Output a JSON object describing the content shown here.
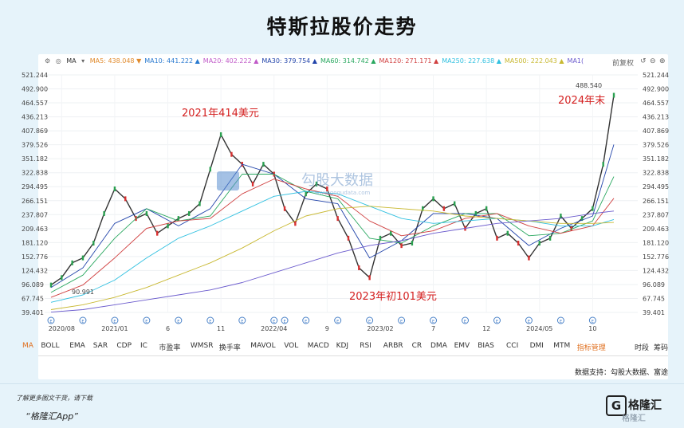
{
  "title": "特斯拉股价走势",
  "legend": {
    "indicator": "MA",
    "items": [
      {
        "label": "MA5:",
        "value": "438.048",
        "color": "#e08a2c",
        "arrow": "▼"
      },
      {
        "label": "MA10:",
        "value": "441.222",
        "color": "#2a7ad0",
        "arrow": "▲"
      },
      {
        "label": "MA20:",
        "value": "402.222",
        "color": "#c05ac8",
        "arrow": "▲"
      },
      {
        "label": "MA30:",
        "value": "379.754",
        "color": "#2244aa",
        "arrow": "▲"
      },
      {
        "label": "MA60:",
        "value": "314.742",
        "color": "#2aa860",
        "arrow": "▲"
      },
      {
        "label": "MA120:",
        "value": "271.171",
        "color": "#d04040",
        "arrow": "▲"
      },
      {
        "label": "MA250:",
        "value": "227.638",
        "color": "#30c0e0",
        "arrow": "▲"
      },
      {
        "label": "MA500:",
        "value": "222.043",
        "color": "#c8b830",
        "arrow": "▲"
      },
      {
        "label": "MA1(",
        "value": "",
        "color": "#6a5acd",
        "arrow": ""
      }
    ],
    "adjust": "前复权"
  },
  "annotations": {
    "peak2021": "2021年414美元",
    "low2023": "2023年初101美元",
    "end2024": "2024年末",
    "max_label": "488.540",
    "min_label": "90.991"
  },
  "watermark": {
    "name": "勾股大数据",
    "url": "www.gogudata.com"
  },
  "indicator_tabs": [
    "MA",
    "BOLL",
    "EMA",
    "SAR",
    "CDP",
    "IC",
    "市盈率",
    "WMSR",
    "换手率",
    "MAVOL",
    "VOL",
    "MACD",
    "KDJ",
    "RSI",
    "ARBR",
    "CR",
    "DMA",
    "EMV",
    "BIAS",
    "CCI",
    "DMI",
    "MTM",
    "指标管理",
    "时段",
    "筹码"
  ],
  "source": "数据支持：勾股大数据、富途",
  "footer": {
    "promo": "了解更多图文干货，请下载",
    "app": "“格隆汇App”",
    "brand_icon": "G",
    "brand_name": "格隆汇",
    "brand_watermark": "格隆汇"
  },
  "event_marker": "E",
  "chart_data": {
    "type": "line",
    "title": "特斯拉股价走势",
    "x_ticks": [
      "2020/08",
      "2021/01",
      "6",
      "11",
      "2022/04",
      "9",
      "2023/02",
      "7",
      "12",
      "2024/05",
      "10"
    ],
    "y_ticks": [
      39.401,
      67.745,
      96.089,
      124.432,
      152.776,
      181.12,
      209.463,
      237.807,
      266.151,
      294.495,
      322.838,
      351.182,
      379.526,
      407.869,
      436.213,
      464.557,
      492.9,
      521.244
    ],
    "ylim": [
      39.401,
      521.244
    ],
    "grid": true,
    "series": [
      {
        "name": "",
        "color": "#333333",
        "x": [
          "2020/07",
          "2020/08",
          "2020/09",
          "2020/10",
          "2020/11",
          "2020/12",
          "2021/01",
          "2021/02",
          "2021/03",
          "2021/04",
          "2021/05",
          "2021/06",
          "2021/07",
          "2021/08",
          "2021/09",
          "2021/10",
          "2021/11",
          "2021/12",
          "2022/01",
          "2022/02",
          "2022/03",
          "2022/04",
          "2022/05",
          "2022/06",
          "2022/07",
          "2022/08",
          "2022/09",
          "2022/10",
          "2022/11",
          "2022/12",
          "2023/01",
          "2023/02",
          "2023/03",
          "2023/04",
          "2023/05",
          "2023/06",
          "2023/07",
          "2023/08",
          "2023/09",
          "2023/10",
          "2023/11",
          "2023/12",
          "2024/01",
          "2024/02",
          "2024/03",
          "2024/04",
          "2024/05",
          "2024/06",
          "2024/07",
          "2024/08",
          "2024/09",
          "2024/10",
          "2024/11",
          "2024/12"
        ],
        "values": [
          95,
          110,
          140,
          150,
          180,
          240,
          290,
          270,
          230,
          240,
          200,
          215,
          230,
          240,
          260,
          330,
          400,
          360,
          340,
          300,
          340,
          320,
          250,
          220,
          280,
          300,
          290,
          230,
          190,
          130,
          110,
          190,
          200,
          175,
          180,
          250,
          270,
          250,
          260,
          210,
          240,
          250,
          190,
          200,
          180,
          150,
          180,
          190,
          235,
          210,
          230,
          250,
          340,
          480
        ]
      },
      {
        "name": "MA30",
        "color": "#2244aa",
        "x": [
          "2020/07",
          "2020/10",
          "2021/01",
          "2021/04",
          "2021/07",
          "2021/10",
          "2022/01",
          "2022/04",
          "2022/07",
          "2022/10",
          "2023/01",
          "2023/04",
          "2023/07",
          "2023/10",
          "2024/01",
          "2024/04",
          "2024/07",
          "2024/10",
          "2024/12"
        ],
        "values": [
          90,
          130,
          220,
          250,
          215,
          250,
          340,
          320,
          270,
          260,
          150,
          185,
          240,
          240,
          230,
          175,
          210,
          235,
          380
        ]
      },
      {
        "name": "MA60",
        "color": "#2aa860",
        "x": [
          "2020/07",
          "2020/10",
          "2021/01",
          "2021/04",
          "2021/07",
          "2021/10",
          "2022/01",
          "2022/04",
          "2022/07",
          "2022/10",
          "2023/01",
          "2023/04",
          "2023/07",
          "2023/10",
          "2024/01",
          "2024/04",
          "2024/07",
          "2024/10",
          "2024/12"
        ],
        "values": [
          80,
          115,
          190,
          250,
          225,
          235,
          320,
          320,
          285,
          270,
          190,
          180,
          215,
          240,
          240,
          195,
          200,
          225,
          315
        ]
      },
      {
        "name": "MA120",
        "color": "#d04040",
        "x": [
          "2020/07",
          "2020/10",
          "2021/01",
          "2021/04",
          "2021/07",
          "2021/10",
          "2022/01",
          "2022/04",
          "2022/07",
          "2022/10",
          "2023/01",
          "2023/04",
          "2023/07",
          "2023/10",
          "2024/01",
          "2024/04",
          "2024/07",
          "2024/10",
          "2024/12"
        ],
        "values": [
          70,
          95,
          150,
          210,
          225,
          230,
          280,
          310,
          290,
          275,
          225,
          195,
          205,
          230,
          240,
          215,
          200,
          215,
          271
        ]
      },
      {
        "name": "MA250",
        "color": "#30c0e0",
        "x": [
          "2020/07",
          "2020/10",
          "2021/01",
          "2021/04",
          "2021/07",
          "2021/10",
          "2022/01",
          "2022/04",
          "2022/07",
          "2022/10",
          "2023/01",
          "2023/04",
          "2023/07",
          "2023/10",
          "2024/01",
          "2024/04",
          "2024/07",
          "2024/10",
          "2024/12"
        ],
        "values": [
          60,
          75,
          105,
          150,
          190,
          215,
          245,
          275,
          285,
          280,
          255,
          230,
          220,
          225,
          230,
          225,
          215,
          215,
          228
        ]
      },
      {
        "name": "MA500",
        "color": "#c8b830",
        "x": [
          "2020/07",
          "2020/10",
          "2021/01",
          "2021/04",
          "2021/07",
          "2021/10",
          "2022/01",
          "2022/04",
          "2022/07",
          "2022/10",
          "2023/01",
          "2023/04",
          "2023/07",
          "2023/10",
          "2024/01",
          "2024/04",
          "2024/07",
          "2024/10",
          "2024/12"
        ],
        "values": [
          45,
          55,
          70,
          90,
          115,
          140,
          170,
          205,
          235,
          250,
          255,
          250,
          245,
          235,
          230,
          225,
          220,
          220,
          222
        ]
      },
      {
        "name": "MA1(",
        "color": "#6a5acd",
        "x": [
          "2020/07",
          "2020/10",
          "2021/01",
          "2021/04",
          "2021/07",
          "2021/10",
          "2022/01",
          "2022/04",
          "2022/07",
          "2022/10",
          "2023/01",
          "2023/04",
          "2023/07",
          "2023/10",
          "2024/01",
          "2024/04",
          "2024/07",
          "2024/10",
          "2024/12"
        ],
        "values": [
          40,
          45,
          55,
          65,
          75,
          85,
          100,
          120,
          140,
          160,
          175,
          185,
          200,
          210,
          220,
          225,
          230,
          240,
          245
        ]
      }
    ]
  }
}
